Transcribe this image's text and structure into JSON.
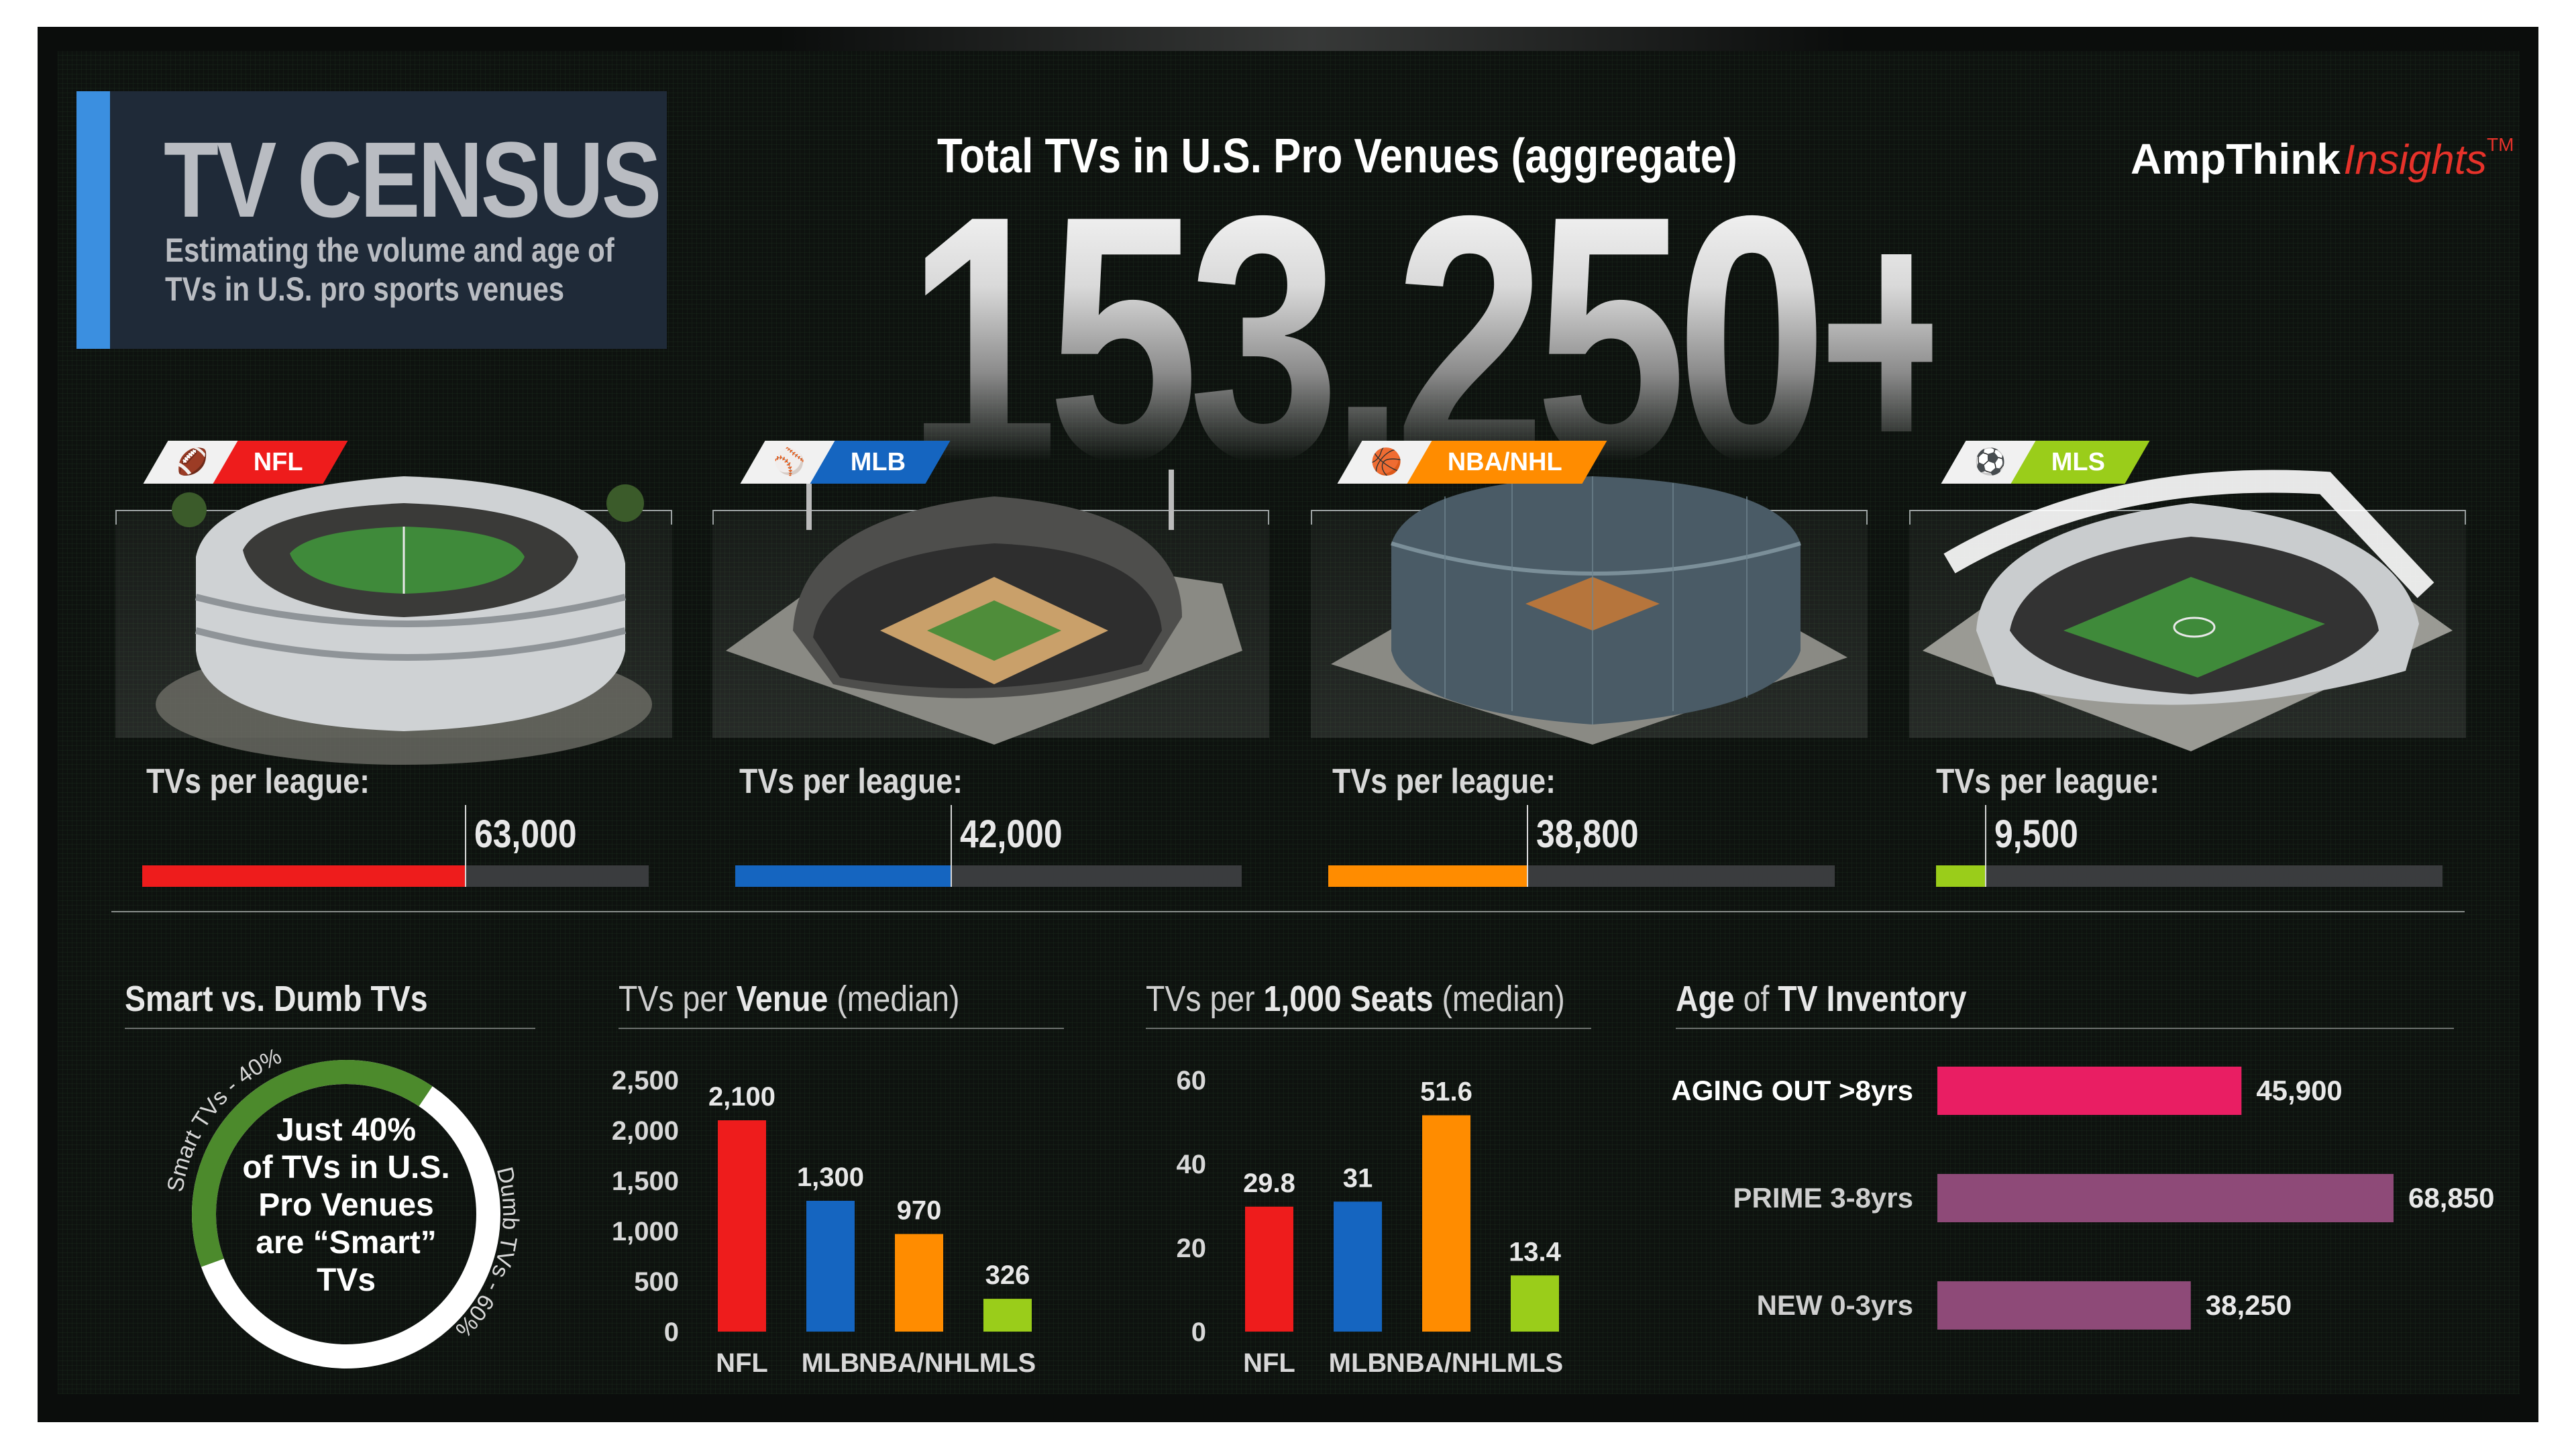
{
  "header": {
    "title": "TV CENSUS",
    "subtitle": "Estimating the volume and age of TVs in U.S. pro sports venues",
    "aggregate_label": "Total TVs in U.S. Pro Venues (aggregate)",
    "aggregate_value": "153,250+",
    "brand_name": "AmpThink",
    "brand_insights": "Insights",
    "brand_tm": "TM"
  },
  "leagues": [
    {
      "name": "NFL",
      "label": "TVs per league:",
      "value": 63000,
      "value_text": "63,000",
      "color": "#ee1c1c",
      "icon": "football-icon"
    },
    {
      "name": "MLB",
      "label": "TVs per league:",
      "value": 42000,
      "value_text": "42,000",
      "color": "#1565c0",
      "icon": "baseball-icon"
    },
    {
      "name": "NBA/NHL",
      "label": "TVs per league:",
      "value": 38800,
      "value_text": "38,800",
      "color": "#ff8c00",
      "icon": "basketball-hockey-icon"
    },
    {
      "name": "MLS",
      "label": "TVs per league:",
      "value": 9500,
      "value_text": "9,500",
      "color": "#9acd1a",
      "icon": "soccer-ball-icon"
    }
  ],
  "smart_dumb": {
    "title": "Smart vs. Dumb TVs",
    "smart_label": "Smart TVs - 40%",
    "dumb_label": "Dumb TVs - 60%",
    "center_text": [
      "Just 40%",
      "of TVs in U.S.",
      "Pro Venues",
      "are “Smart”",
      "TVs"
    ],
    "smart_pct": 40,
    "dumb_pct": 60,
    "smart_color": "#4c8a2c",
    "dumb_color": "#ffffff"
  },
  "chart_data": [
    {
      "type": "bar",
      "title_pre": "TVs per",
      "title_bold": "Venue",
      "title_post": "(median)",
      "categories": [
        "NFL",
        "MLB",
        "NBA/NHL",
        "MLS"
      ],
      "values": [
        2100,
        1300,
        970,
        326
      ],
      "value_labels": [
        "2,100",
        "1,300",
        "970",
        "326"
      ],
      "colors": [
        "#ee1c1c",
        "#1565c0",
        "#ff8c00",
        "#9acd1a"
      ],
      "yticks": [
        "0",
        "500",
        "1,000",
        "1,500",
        "2,000",
        "2,500"
      ],
      "ylim": [
        0,
        2500
      ]
    },
    {
      "type": "bar",
      "title_pre": "TVs per",
      "title_bold": "1,000 Seats",
      "title_post": "(median)",
      "categories": [
        "NFL",
        "MLB",
        "NBA/NHL",
        "MLS"
      ],
      "values": [
        29.8,
        31,
        51.6,
        13.4
      ],
      "value_labels": [
        "29.8",
        "31",
        "51.6",
        "13.4"
      ],
      "colors": [
        "#ee1c1c",
        "#1565c0",
        "#ff8c00",
        "#9acd1a"
      ],
      "yticks": [
        "0",
        "20",
        "40",
        "60"
      ],
      "ylim": [
        0,
        60
      ]
    },
    {
      "type": "bar",
      "orientation": "horizontal",
      "title_pre": "",
      "title_bold": "Age",
      "title_mid": "of",
      "title_bold2": "TV Inventory",
      "categories": [
        "AGING OUT >8yrs",
        "PRIME 3-8yrs",
        "NEW 0-3yrs"
      ],
      "values": [
        45900,
        68850,
        38250
      ],
      "value_labels": [
        "45,900",
        "68,850",
        "38,250"
      ],
      "colors": [
        "#e91e63",
        "#8e4a78",
        "#8e4a78"
      ],
      "xlim": [
        0,
        68850
      ]
    }
  ]
}
